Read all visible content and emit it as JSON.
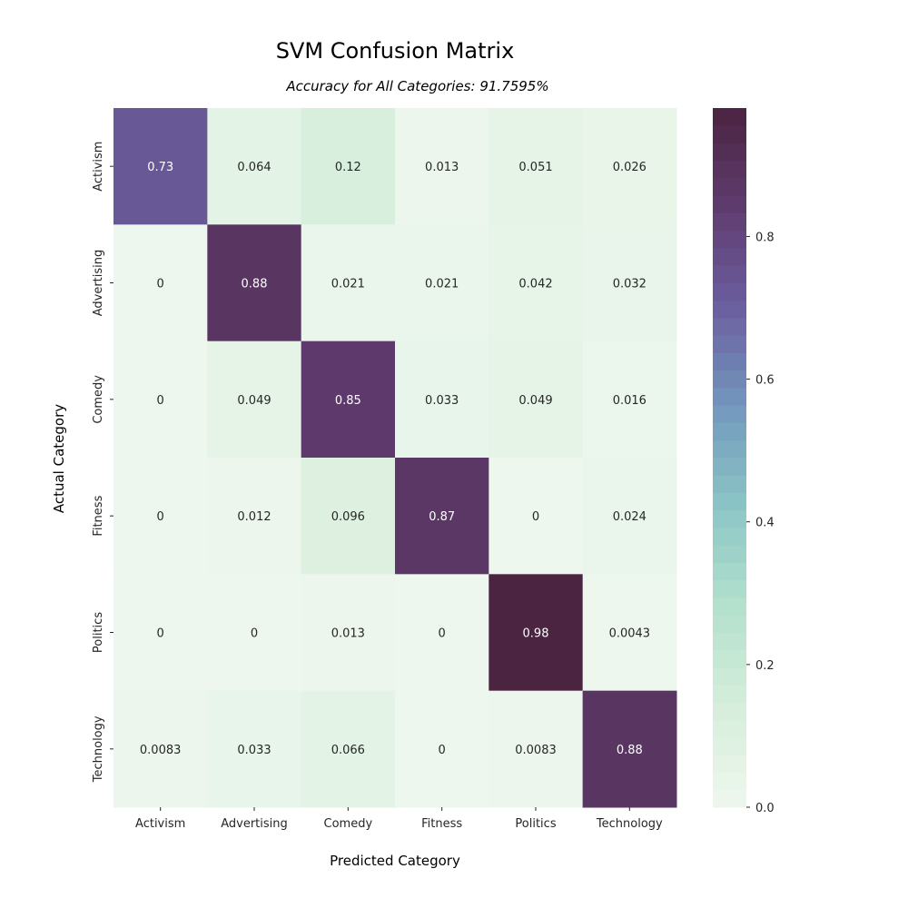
{
  "chart_data": {
    "type": "heatmap",
    "title": "SVM Confusion Matrix",
    "subtitle": "Accuracy for All Categories: 91.7595%",
    "xlabel": "Predicted Category",
    "ylabel": "Actual Category",
    "x_categories": [
      "Activism",
      "Advertising",
      "Comedy",
      "Fitness",
      "Politics",
      "Technology"
    ],
    "y_categories": [
      "Activism",
      "Advertising",
      "Comedy",
      "Fitness",
      "Politics",
      "Technology"
    ],
    "values": [
      [
        0.73,
        0.064,
        0.12,
        0.013,
        0.051,
        0.026
      ],
      [
        0,
        0.88,
        0.021,
        0.021,
        0.042,
        0.032
      ],
      [
        0,
        0.049,
        0.85,
        0.033,
        0.049,
        0.016
      ],
      [
        0,
        0.012,
        0.096,
        0.87,
        0,
        0.024
      ],
      [
        0,
        0,
        0.013,
        0,
        0.98,
        0.0043
      ],
      [
        0.0083,
        0.033,
        0.066,
        0,
        0.0083,
        0.88
      ]
    ],
    "value_labels": [
      [
        "0.73",
        "0.064",
        "0.12",
        "0.013",
        "0.051",
        "0.026"
      ],
      [
        "0",
        "0.88",
        "0.021",
        "0.021",
        "0.042",
        "0.032"
      ],
      [
        "0",
        "0.049",
        "0.85",
        "0.033",
        "0.049",
        "0.016"
      ],
      [
        "0",
        "0.012",
        "0.096",
        "0.87",
        "0",
        "0.024"
      ],
      [
        "0",
        "0",
        "0.013",
        "0",
        "0.98",
        "0.0043"
      ],
      [
        "0.0083",
        "0.033",
        "0.066",
        "0",
        "0.0083",
        "0.88"
      ]
    ],
    "colorbar": {
      "range": [
        0,
        0.98
      ],
      "ticks": [
        "0.0",
        "0.2",
        "0.4",
        "0.6",
        "0.8"
      ],
      "tick_values": [
        0,
        0.2,
        0.4,
        0.6,
        0.8
      ],
      "colors": [
        "#eef7ee",
        "#d6eedb",
        "#b3e1cd",
        "#8cc6c6",
        "#7399be",
        "#6b5fa0",
        "#5f3c6f",
        "#4a2440"
      ]
    }
  }
}
